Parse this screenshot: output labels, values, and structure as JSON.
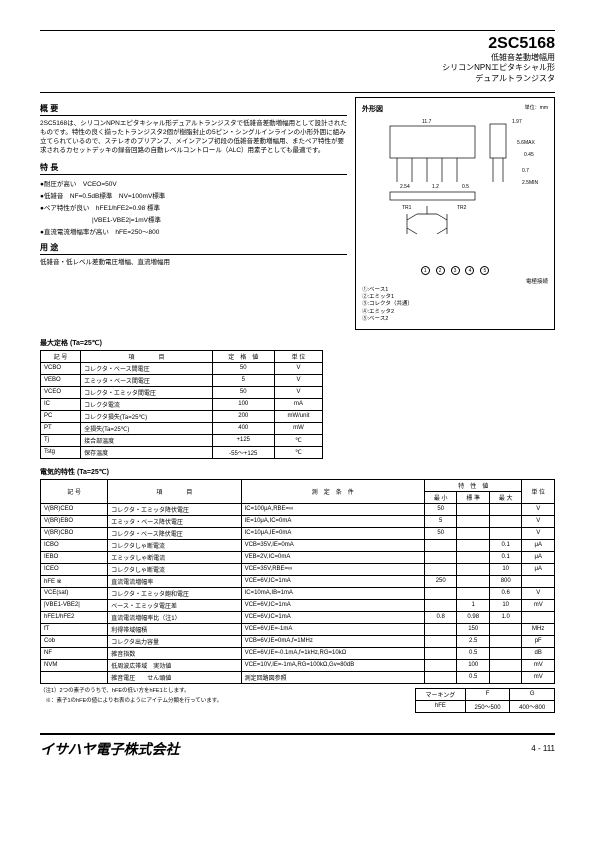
{
  "header": {
    "part_number": "2SC5168",
    "line1": "低雑音差動増幅用",
    "line2": "シリコンNPNエピタキシャル形",
    "line3": "デュアルトランジスタ"
  },
  "overview": {
    "title": "概 要",
    "text": "2SC5168は、シリコンNPNエピタキシャル形デュアルトランジスタで低雑音差動増幅用として設計されたものです。特性の良く揃ったトランジスタ2個が樹脂封止の5ピン・シングルインラインの小形外囲に組み立てられているので、ステレオのプリアンプ、メインアンプ初段の低雑音差動増幅用、またペア特性が要求されるカセットデッキの録音回路の自動レベルコントロール（ALC）用素子としても最適です。"
  },
  "features": {
    "title": "特 長",
    "items": [
      "●耐圧が高い　VCEO=50V",
      "●低雑音　NF=0.5dB標準　NV=100mV標準",
      "●ペア特性が良い　hFE1/hFE2=0.98 標準",
      "　　　　　　　　|VBE1-VBE2|=1mV標準",
      "●直流電流増幅率が高い　hFE=250～800"
    ]
  },
  "applications": {
    "title": "用 途",
    "text": "低雑音・低レベル差動電圧増幅、直流増幅用"
  },
  "outline": {
    "title": "外形図",
    "unit": "単位：mm",
    "dims": {
      "w": "11.7",
      "w_tol": "±0.3",
      "pitch": "2.54",
      "lead": "1.2",
      "lead2": "0.5",
      "h": "1.97",
      "body_h": "5.6MAX",
      "lead_w": "0.45",
      "thick": "0.7",
      "leg": "2.5MIN"
    },
    "tr1": "TR1",
    "tr2": "TR2",
    "pin_note": "電極接続",
    "pins": [
      {
        "n": "①",
        "label": "ベース1"
      },
      {
        "n": "②",
        "label": "エミッタ1"
      },
      {
        "n": "③",
        "label": "コレクタ（共通）"
      },
      {
        "n": "④",
        "label": "エミッタ2"
      },
      {
        "n": "⑤",
        "label": "ベース2"
      }
    ]
  },
  "abs_max": {
    "title": "最大定格 (Ta=25℃)",
    "headers": [
      "記 号",
      "項　　　　目",
      "定　格　値",
      "単 位"
    ],
    "rows": [
      [
        "VCBO",
        "コレクタ・ベース間電圧",
        "50",
        "V"
      ],
      [
        "VEBO",
        "エミッタ・ベース間電圧",
        "5",
        "V"
      ],
      [
        "VCEO",
        "コレクタ・エミッタ間電圧",
        "50",
        "V"
      ],
      [
        "IC",
        "コレクタ電流",
        "100",
        "mA"
      ],
      [
        "PC",
        "コレクタ損失(Ta=25℃)",
        "200",
        "mW/unit"
      ],
      [
        "PT",
        "全損失(Ta=25℃)",
        "400",
        "mW"
      ],
      [
        "Tj",
        "接合部温度",
        "+125",
        "℃"
      ],
      [
        "Tstg",
        "保存温度",
        "-55～+125",
        "℃"
      ]
    ]
  },
  "elec": {
    "title": "電気的特性 (Ta=25℃)",
    "headers": [
      "記 号",
      "項　　　　目",
      "測　定　条　件",
      "最 小",
      "標 準",
      "最 大",
      "単 位"
    ],
    "group_header": "特　性　値",
    "rows": [
      [
        "V(BR)CEO",
        "コレクタ・エミッタ降伏電圧",
        "IC=100μA,RBE=∞",
        "50",
        "",
        "",
        "V"
      ],
      [
        "V(BR)EBO",
        "エミッタ・ベース降伏電圧",
        "IE=10μA,IC=0mA",
        "5",
        "",
        "",
        "V"
      ],
      [
        "V(BR)CBO",
        "コレクタ・ベース降伏電圧",
        "IC=10μA,IE=0mA",
        "50",
        "",
        "",
        "V"
      ],
      [
        "ICBO",
        "コレクタしゃ断電流",
        "VCB=35V,IE=0mA",
        "",
        "",
        "0.1",
        "μA"
      ],
      [
        "IEBO",
        "エミッタしゃ断電流",
        "VEB=2V,IC=0mA",
        "",
        "",
        "0.1",
        "μA"
      ],
      [
        "ICEO",
        "コレクタしゃ断電流",
        "VCE=35V,RBE=∞",
        "",
        "",
        "10",
        "μA"
      ],
      [
        "hFE ※",
        "直流電流増幅率",
        "VCE=6V,IC=1mA",
        "250",
        "",
        "800",
        ""
      ],
      [
        "VCE(sat)",
        "コレクタ・エミッタ飽和電圧",
        "IC=10mA,IB=1mA",
        "",
        "",
        "0.6",
        "V"
      ],
      [
        "|VBE1-VBE2|",
        "ベース・エミッタ電圧差",
        "VCE=6V,IC=1mA",
        "",
        "1",
        "10",
        "mV"
      ],
      [
        "hFE1/hFE2",
        "直流電流増幅率比（注1）",
        "VCE=6V,IC=1mA",
        "0.8",
        "0.98",
        "1.0",
        ""
      ],
      [
        "fT",
        "利得帯域幅積",
        "VCE=6V,IE=-1mA",
        "",
        "150",
        "",
        "MHz"
      ],
      [
        "Cob",
        "コレクタ出力容量",
        "VCB=6V,IE=0mA,f=1MHz",
        "",
        "2.5",
        "",
        "pF"
      ],
      [
        "NF",
        "雑音指数",
        "VCE=6V,IE=-0.1mA,f=1kHz,RG=10kΩ",
        "",
        "0.5",
        "",
        "dB"
      ],
      [
        "NVM",
        "低周波広帯域　実効値",
        "VCE=10V,IE=-1mA,RG=100kΩ,Gv=80dB",
        "",
        "100",
        "",
        "mV"
      ],
      [
        "",
        "雑音電圧　　せん頭値",
        "測定回路図参照",
        "",
        "0.5",
        "",
        "mV"
      ]
    ]
  },
  "marking": {
    "headers": [
      "マーキング",
      "F",
      "G"
    ],
    "row": [
      "hFE",
      "250～500",
      "400～800"
    ]
  },
  "notes": {
    "n1": "（注1）2つの素子のうちで、hFEの低い方をhFE1とします。",
    "n2": "　※：素子1のhFEの値により右表のようにアイテム分類を行っています。"
  },
  "footer": {
    "company": "イサハヤ電子株式会社",
    "page": "4 - 111"
  }
}
